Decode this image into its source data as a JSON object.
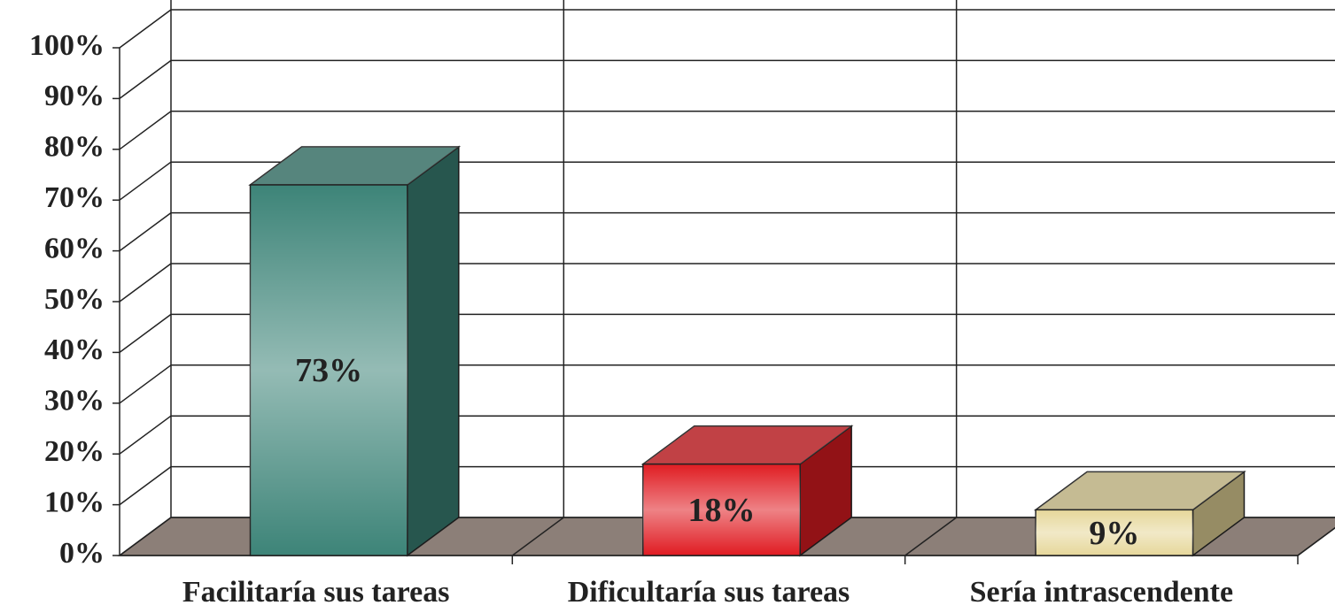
{
  "chart_data": {
    "type": "bar3d",
    "categories": [
      "Facilitaría sus tareas",
      "Dificultaría sus tareas",
      "Sería intrascendente"
    ],
    "values": [
      73,
      18,
      9
    ],
    "value_labels": [
      "73%",
      "18%",
      "9%"
    ],
    "colors": [
      "#3d8478",
      "#e01c22",
      "#e6d79a"
    ],
    "ylim": [
      0,
      100
    ],
    "yticks": [
      {
        "value": 0,
        "label": "0%"
      },
      {
        "value": 10,
        "label": "10%"
      },
      {
        "value": 20,
        "label": "20%"
      },
      {
        "value": 30,
        "label": "30%"
      },
      {
        "value": 40,
        "label": "40%"
      },
      {
        "value": 50,
        "label": "50%"
      },
      {
        "value": 60,
        "label": "60%"
      },
      {
        "value": 70,
        "label": "70%"
      },
      {
        "value": 80,
        "label": "80%"
      },
      {
        "value": 90,
        "label": "90%"
      },
      {
        "value": 100,
        "label": "100%"
      }
    ],
    "grid": true
  }
}
